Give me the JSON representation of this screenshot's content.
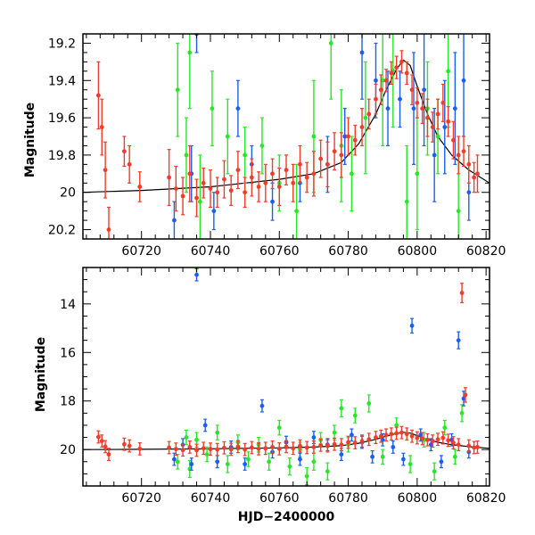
{
  "chart_data": [
    {
      "type": "scatter",
      "panel": "top",
      "xlabel": "",
      "ylabel": "Magnitude",
      "xlim": [
        60703,
        60821
      ],
      "ylim": [
        20.25,
        19.15
      ],
      "y_inverted": true,
      "xticks": [
        60720,
        60740,
        60760,
        60780,
        60800,
        60820
      ],
      "yticks": [
        19.2,
        19.4,
        19.6,
        19.8,
        20,
        20.2
      ],
      "xtick_labels": [
        "60720",
        "60740",
        "60760",
        "60780",
        "60800",
        "60820"
      ],
      "ytick_labels": [
        "19.2",
        "19.4",
        "19.6",
        "19.8",
        "20",
        "20.2"
      ],
      "grid": false,
      "error_bars": true,
      "model_curve": {
        "color": "#000000",
        "x": [
          60703,
          60720,
          60740,
          60760,
          60770,
          60778,
          60783,
          60788,
          60791,
          60794,
          60796,
          60798,
          60800,
          60803,
          60806,
          60810,
          60815,
          60821
        ],
        "y": [
          20.0,
          19.99,
          19.97,
          19.93,
          19.9,
          19.84,
          19.74,
          19.58,
          19.45,
          19.34,
          19.29,
          19.32,
          19.43,
          19.58,
          19.7,
          19.8,
          19.88,
          19.95
        ]
      },
      "series": [
        {
          "color": "#28e628",
          "x": [
            60730.5,
            60733.0,
            60734.0,
            60737.0,
            60740.5,
            60745.0,
            60750.0,
            60755.0,
            60760.0,
            60765.0,
            60770.0,
            60775.0,
            60778.0,
            60781.0,
            60785.0,
            60790.0,
            60793.0,
            60797.0,
            60800.0,
            60803.0,
            60806.0,
            60809.0,
            60812.0
          ],
          "y": [
            19.45,
            19.8,
            19.25,
            20.05,
            19.55,
            19.7,
            19.8,
            19.75,
            19.95,
            20.1,
            19.7,
            19.2,
            19.75,
            19.9,
            19.6,
            19.4,
            19.35,
            20.05,
            19.9,
            19.55,
            19.7,
            19.35,
            20.1
          ],
          "err": [
            0.25,
            0.2,
            0.3,
            0.25,
            0.2,
            0.2,
            0.15,
            0.15,
            0.15,
            0.25,
            0.3,
            0.3,
            0.3,
            0.2,
            0.3,
            0.35,
            0.3,
            0.3,
            0.3,
            0.25,
            0.2,
            0.3,
            0.3
          ]
        },
        {
          "color": "#1a5ff0",
          "x": [
            60729.5,
            60734.5,
            60736.0,
            60741.0,
            60748.0,
            60752.0,
            60758.0,
            60766.0,
            60774.0,
            60779.0,
            60784.0,
            60788.0,
            60791.5,
            60795.0,
            60799.0,
            60802.0,
            60805.0,
            60808.0,
            60811.0,
            60813.5,
            60815.0
          ],
          "y": [
            20.15,
            19.9,
            19.15,
            20.1,
            19.55,
            19.85,
            20.05,
            19.95,
            19.85,
            19.7,
            19.25,
            19.4,
            19.55,
            19.5,
            19.55,
            19.45,
            19.8,
            19.65,
            19.55,
            19.4,
            20.0
          ],
          "err": [
            0.1,
            0.15,
            0.1,
            0.1,
            0.15,
            0.1,
            0.1,
            0.1,
            0.15,
            0.15,
            0.25,
            0.2,
            0.2,
            0.15,
            0.3,
            0.3,
            0.25,
            0.25,
            0.3,
            0.3,
            0.15
          ]
        },
        {
          "color": "#f03c28",
          "x": [
            60707.5,
            60708.5,
            60709.5,
            60710.5,
            60715.0,
            60716.5,
            60719.5,
            60728,
            60730,
            60732,
            60734,
            60736,
            60738,
            60740,
            60742,
            60744,
            60746,
            60748,
            60750,
            60752,
            60754,
            60756,
            60758,
            60760,
            60762,
            60764,
            60766,
            60768,
            60770,
            60772,
            60774,
            60776,
            60778,
            60780,
            60782,
            60784,
            60786,
            60788,
            60789.5,
            60791,
            60792.5,
            60794,
            60795.5,
            60797,
            60798.5,
            60800,
            60801.5,
            60803,
            60804.5,
            60806,
            60807.5,
            60809,
            60810.5,
            60812,
            60813.5,
            60815,
            60816.5,
            60817.5
          ],
          "y": [
            19.48,
            19.65,
            19.88,
            20.2,
            19.78,
            19.85,
            19.97,
            19.92,
            19.98,
            20.02,
            19.9,
            20.03,
            19.95,
            19.98,
            20.0,
            19.93,
            19.99,
            19.88,
            20.0,
            19.92,
            19.97,
            19.95,
            19.9,
            19.97,
            19.88,
            19.95,
            19.85,
            19.92,
            19.9,
            19.82,
            19.85,
            19.78,
            19.8,
            19.7,
            19.72,
            19.65,
            19.58,
            19.5,
            19.45,
            19.4,
            19.36,
            19.33,
            19.3,
            19.36,
            19.45,
            19.52,
            19.55,
            19.6,
            19.65,
            19.58,
            19.52,
            19.62,
            19.72,
            19.8,
            19.78,
            19.85,
            19.92,
            19.9
          ],
          "err": [
            0.18,
            0.15,
            0.15,
            0.12,
            0.08,
            0.1,
            0.08,
            0.15,
            0.12,
            0.1,
            0.15,
            0.1,
            0.08,
            0.1,
            0.08,
            0.1,
            0.08,
            0.1,
            0.08,
            0.1,
            0.08,
            0.1,
            0.08,
            0.1,
            0.08,
            0.1,
            0.1,
            0.08,
            0.12,
            0.1,
            0.12,
            0.1,
            0.12,
            0.1,
            0.08,
            0.1,
            0.08,
            0.08,
            0.08,
            0.06,
            0.06,
            0.06,
            0.06,
            0.06,
            0.08,
            0.08,
            0.08,
            0.1,
            0.08,
            0.08,
            0.1,
            0.08,
            0.1,
            0.1,
            0.08,
            0.1,
            0.08,
            0.1
          ]
        }
      ]
    },
    {
      "type": "scatter",
      "panel": "bottom",
      "xlabel": "HJD−2400000",
      "ylabel": "Magnitude",
      "xlim": [
        60703,
        60821
      ],
      "ylim": [
        21.5,
        12.5
      ],
      "y_inverted": true,
      "xticks": [
        60720,
        60740,
        60760,
        60780,
        60800,
        60820
      ],
      "yticks": [
        14,
        16,
        18,
        20
      ],
      "xtick_labels": [
        "60720",
        "60740",
        "60760",
        "60780",
        "60800",
        "60820"
      ],
      "ytick_labels": [
        "14",
        "16",
        "18",
        "20"
      ],
      "grid": false,
      "error_bars": true,
      "model_curve": {
        "color": "#000000",
        "x": [
          60703,
          60720,
          60740,
          60760,
          60770,
          60778,
          60783,
          60788,
          60791,
          60794,
          60796,
          60798,
          60800,
          60803,
          60806,
          60810,
          60815,
          60821
        ],
        "y": [
          20.0,
          19.99,
          19.97,
          19.93,
          19.9,
          19.84,
          19.74,
          19.58,
          19.45,
          19.34,
          19.29,
          19.32,
          19.43,
          19.58,
          19.7,
          19.8,
          19.88,
          19.95
        ]
      },
      "series": [
        {
          "color": "#28e628",
          "x": [
            60730.5,
            60733.0,
            60734.0,
            60736.0,
            60739.0,
            60742.0,
            60745.0,
            60748.0,
            60751.0,
            60754.0,
            60757.0,
            60760.0,
            60763.0,
            60766.0,
            60768.0,
            60770.0,
            60772.0,
            60774.0,
            60776.0,
            60778.0,
            60780.0,
            60782.0,
            60786.0,
            60790.0,
            60794.0,
            60798.0,
            60802.0,
            60805.0,
            60808.0,
            60811.0,
            60813.0
          ],
          "y": [
            20.5,
            19.5,
            20.8,
            19.6,
            20.2,
            19.3,
            20.6,
            19.7,
            20.4,
            19.8,
            20.5,
            19.1,
            20.7,
            20.0,
            21.1,
            20.5,
            19.6,
            20.9,
            19.3,
            18.3,
            19.8,
            18.6,
            18.1,
            20.3,
            19.0,
            20.6,
            19.6,
            20.9,
            19.1,
            20.3,
            18.5
          ],
          "err": [
            0.3,
            0.3,
            0.35,
            0.3,
            0.3,
            0.3,
            0.35,
            0.3,
            0.3,
            0.3,
            0.35,
            0.3,
            0.35,
            0.3,
            0.35,
            0.35,
            0.3,
            0.35,
            0.3,
            0.35,
            0.3,
            0.3,
            0.35,
            0.3,
            0.3,
            0.35,
            0.3,
            0.35,
            0.3,
            0.3,
            0.35
          ]
        },
        {
          "color": "#1a5ff0",
          "x": [
            60729.5,
            60732.0,
            60734.5,
            60736.0,
            60738.5,
            60742.0,
            60746.0,
            60750.0,
            60755.0,
            60758.0,
            60762.0,
            60766.0,
            60770.0,
            60774.0,
            60778.0,
            60781.0,
            60784.0,
            60787.0,
            60790.0,
            60793.0,
            60796.0,
            60798.5,
            60801.0,
            60804.0,
            60807.0,
            60810.0,
            60812.0,
            60813.5,
            60815.0
          ],
          "y": [
            20.4,
            19.8,
            20.6,
            12.8,
            19.0,
            20.5,
            19.9,
            20.6,
            18.2,
            20.1,
            19.7,
            20.4,
            19.5,
            19.8,
            20.2,
            19.4,
            19.7,
            20.3,
            19.6,
            19.9,
            20.4,
            14.9,
            19.4,
            19.8,
            20.5,
            19.6,
            15.5,
            17.9,
            20.1
          ],
          "err": [
            0.25,
            0.25,
            0.25,
            0.25,
            0.25,
            0.25,
            0.25,
            0.25,
            0.25,
            0.25,
            0.25,
            0.25,
            0.25,
            0.25,
            0.25,
            0.25,
            0.25,
            0.25,
            0.25,
            0.25,
            0.25,
            0.3,
            0.25,
            0.25,
            0.25,
            0.25,
            0.35,
            0.3,
            0.25
          ]
        },
        {
          "color": "#f03c28",
          "x": [
            60707.5,
            60708.5,
            60709.5,
            60710.5,
            60715.0,
            60716.5,
            60719.5,
            60728,
            60730,
            60732,
            60734,
            60736,
            60738,
            60740,
            60742,
            60744,
            60746,
            60748,
            60750,
            60752,
            60754,
            60756,
            60758,
            60760,
            60762,
            60764,
            60766,
            60768,
            60770,
            60772,
            60774,
            60776,
            60778,
            60780,
            60782,
            60784,
            60786,
            60788,
            60789.5,
            60791,
            60792.5,
            60794,
            60795.5,
            60797,
            60798.5,
            60800,
            60801.5,
            60803,
            60804.5,
            60806,
            60807.5,
            60809,
            60810.5,
            60812,
            60813,
            60814,
            60815,
            60816.5,
            60817.5
          ],
          "y": [
            19.48,
            19.65,
            19.88,
            20.2,
            19.78,
            19.85,
            19.97,
            19.92,
            19.98,
            20.02,
            19.9,
            20.03,
            19.95,
            19.98,
            20.0,
            19.93,
            19.99,
            19.88,
            20.0,
            19.92,
            19.97,
            19.95,
            19.9,
            19.97,
            19.88,
            19.95,
            19.85,
            19.92,
            19.9,
            19.82,
            19.85,
            19.78,
            19.8,
            19.7,
            19.72,
            19.65,
            19.58,
            19.5,
            19.45,
            19.4,
            19.36,
            19.33,
            19.3,
            19.36,
            19.45,
            19.52,
            19.55,
            19.6,
            19.65,
            19.58,
            19.52,
            19.62,
            19.72,
            19.8,
            13.55,
            17.75,
            19.85,
            19.92,
            19.9
          ],
          "err": [
            0.25,
            0.25,
            0.25,
            0.25,
            0.25,
            0.25,
            0.25,
            0.25,
            0.25,
            0.25,
            0.25,
            0.25,
            0.25,
            0.25,
            0.25,
            0.25,
            0.25,
            0.25,
            0.25,
            0.25,
            0.25,
            0.25,
            0.25,
            0.25,
            0.25,
            0.25,
            0.25,
            0.25,
            0.25,
            0.25,
            0.25,
            0.25,
            0.25,
            0.25,
            0.25,
            0.25,
            0.25,
            0.25,
            0.25,
            0.25,
            0.25,
            0.25,
            0.25,
            0.25,
            0.25,
            0.25,
            0.25,
            0.25,
            0.25,
            0.25,
            0.25,
            0.25,
            0.25,
            0.25,
            0.4,
            0.3,
            0.25,
            0.25,
            0.25
          ]
        }
      ]
    }
  ]
}
